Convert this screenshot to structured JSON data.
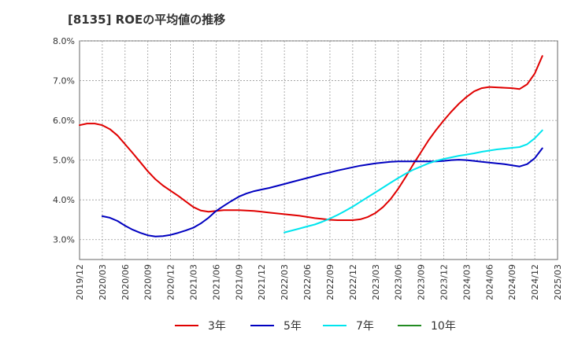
{
  "chart_data": {
    "type": "line",
    "title": "[8135]  ROEの平均値の推移",
    "xlabel": "",
    "ylabel": "",
    "ylim": [
      2.5,
      8.0
    ],
    "y_ticks": [
      3.0,
      4.0,
      5.0,
      6.0,
      7.0,
      8.0
    ],
    "y_tick_labels": [
      "3.0%",
      "4.0%",
      "5.0%",
      "6.0%",
      "7.0%",
      "8.0%"
    ],
    "x_tick_labels": [
      "2019/12",
      "2020/03",
      "2020/06",
      "2020/09",
      "2020/12",
      "2021/03",
      "2021/06",
      "2021/09",
      "2021/12",
      "2022/03",
      "2022/06",
      "2022/09",
      "2022/12",
      "2023/03",
      "2023/06",
      "2023/09",
      "2023/12",
      "2024/03",
      "2024/06",
      "2024/09",
      "2024/12",
      "2025/03"
    ],
    "x_unit": "months since 2019/12",
    "xlim": [
      0,
      63
    ],
    "grid": true,
    "legend_position": "bottom-center",
    "series": [
      {
        "name": "3年",
        "color": "#e00000",
        "points": [
          [
            0,
            5.88
          ],
          [
            1,
            5.92
          ],
          [
            2,
            5.92
          ],
          [
            3,
            5.88
          ],
          [
            4,
            5.78
          ],
          [
            5,
            5.62
          ],
          [
            6,
            5.4
          ],
          [
            7,
            5.18
          ],
          [
            8,
            4.95
          ],
          [
            9,
            4.72
          ],
          [
            10,
            4.52
          ],
          [
            11,
            4.36
          ],
          [
            12,
            4.23
          ],
          [
            13,
            4.1
          ],
          [
            14,
            3.96
          ],
          [
            15,
            3.82
          ],
          [
            16,
            3.73
          ],
          [
            17,
            3.7
          ],
          [
            18,
            3.72
          ],
          [
            19,
            3.74
          ],
          [
            20,
            3.74
          ],
          [
            21,
            3.74
          ],
          [
            22,
            3.73
          ],
          [
            23,
            3.72
          ],
          [
            24,
            3.7
          ],
          [
            25,
            3.68
          ],
          [
            26,
            3.66
          ],
          [
            27,
            3.64
          ],
          [
            28,
            3.62
          ],
          [
            29,
            3.6
          ],
          [
            30,
            3.57
          ],
          [
            31,
            3.54
          ],
          [
            32,
            3.52
          ],
          [
            33,
            3.5
          ],
          [
            34,
            3.49
          ],
          [
            35,
            3.49
          ],
          [
            36,
            3.49
          ],
          [
            37,
            3.51
          ],
          [
            38,
            3.57
          ],
          [
            39,
            3.67
          ],
          [
            40,
            3.82
          ],
          [
            41,
            4.02
          ],
          [
            42,
            4.28
          ],
          [
            43,
            4.58
          ],
          [
            44,
            4.9
          ],
          [
            45,
            5.2
          ],
          [
            46,
            5.5
          ],
          [
            47,
            5.76
          ],
          [
            48,
            6.0
          ],
          [
            49,
            6.22
          ],
          [
            50,
            6.42
          ],
          [
            51,
            6.59
          ],
          [
            52,
            6.73
          ],
          [
            53,
            6.81
          ],
          [
            54,
            6.84
          ],
          [
            55,
            6.83
          ],
          [
            56,
            6.82
          ],
          [
            57,
            6.81
          ],
          [
            58,
            6.79
          ],
          [
            59,
            6.91
          ],
          [
            60,
            7.18
          ],
          [
            61,
            7.62
          ]
        ]
      },
      {
        "name": "5年",
        "color": "#0000c0",
        "points": [
          [
            3,
            3.59
          ],
          [
            4,
            3.55
          ],
          [
            5,
            3.47
          ],
          [
            6,
            3.35
          ],
          [
            7,
            3.25
          ],
          [
            8,
            3.17
          ],
          [
            9,
            3.11
          ],
          [
            10,
            3.08
          ],
          [
            11,
            3.09
          ],
          [
            12,
            3.12
          ],
          [
            13,
            3.17
          ],
          [
            14,
            3.23
          ],
          [
            15,
            3.3
          ],
          [
            16,
            3.41
          ],
          [
            17,
            3.55
          ],
          [
            18,
            3.72
          ],
          [
            19,
            3.85
          ],
          [
            20,
            3.97
          ],
          [
            21,
            4.08
          ],
          [
            22,
            4.16
          ],
          [
            23,
            4.22
          ],
          [
            24,
            4.26
          ],
          [
            25,
            4.3
          ],
          [
            26,
            4.35
          ],
          [
            27,
            4.4
          ],
          [
            28,
            4.45
          ],
          [
            29,
            4.5
          ],
          [
            30,
            4.55
          ],
          [
            31,
            4.6
          ],
          [
            32,
            4.65
          ],
          [
            33,
            4.69
          ],
          [
            34,
            4.74
          ],
          [
            35,
            4.78
          ],
          [
            36,
            4.82
          ],
          [
            37,
            4.86
          ],
          [
            38,
            4.89
          ],
          [
            39,
            4.92
          ],
          [
            40,
            4.94
          ],
          [
            41,
            4.96
          ],
          [
            42,
            4.97
          ],
          [
            43,
            4.97
          ],
          [
            44,
            4.97
          ],
          [
            45,
            4.97
          ],
          [
            46,
            4.97
          ],
          [
            47,
            4.97
          ],
          [
            48,
            4.98
          ],
          [
            49,
            5.0
          ],
          [
            50,
            5.01
          ],
          [
            51,
            5.0
          ],
          [
            52,
            4.98
          ],
          [
            53,
            4.96
          ],
          [
            54,
            4.94
          ],
          [
            55,
            4.92
          ],
          [
            56,
            4.9
          ],
          [
            57,
            4.87
          ],
          [
            58,
            4.84
          ],
          [
            59,
            4.9
          ],
          [
            60,
            5.05
          ],
          [
            61,
            5.3
          ]
        ]
      },
      {
        "name": "7年",
        "color": "#00e5ee",
        "points": [
          [
            27,
            3.18
          ],
          [
            28,
            3.23
          ],
          [
            29,
            3.28
          ],
          [
            30,
            3.33
          ],
          [
            31,
            3.38
          ],
          [
            32,
            3.45
          ],
          [
            33,
            3.53
          ],
          [
            34,
            3.62
          ],
          [
            35,
            3.72
          ],
          [
            36,
            3.83
          ],
          [
            37,
            3.95
          ],
          [
            38,
            4.07
          ],
          [
            39,
            4.19
          ],
          [
            40,
            4.31
          ],
          [
            41,
            4.43
          ],
          [
            42,
            4.55
          ],
          [
            43,
            4.66
          ],
          [
            44,
            4.76
          ],
          [
            45,
            4.84
          ],
          [
            46,
            4.92
          ],
          [
            47,
            4.98
          ],
          [
            48,
            5.03
          ],
          [
            49,
            5.07
          ],
          [
            50,
            5.11
          ],
          [
            51,
            5.14
          ],
          [
            52,
            5.17
          ],
          [
            53,
            5.21
          ],
          [
            54,
            5.24
          ],
          [
            55,
            5.27
          ],
          [
            56,
            5.29
          ],
          [
            57,
            5.31
          ],
          [
            58,
            5.33
          ],
          [
            59,
            5.4
          ],
          [
            60,
            5.55
          ],
          [
            61,
            5.75
          ]
        ]
      },
      {
        "name": "10年",
        "color": "#228b22",
        "points": []
      }
    ]
  }
}
